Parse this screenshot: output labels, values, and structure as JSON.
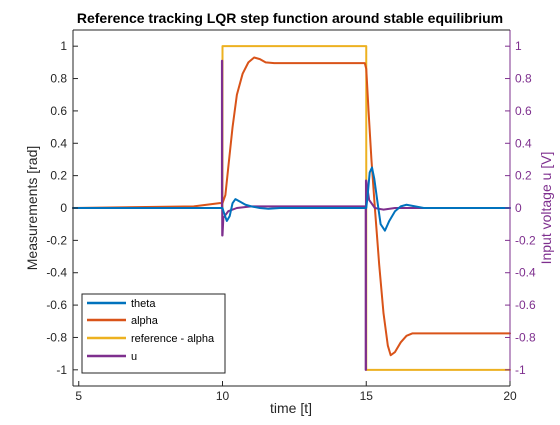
{
  "chart_data": {
    "type": "line",
    "title": "Reference tracking LQR step function around stable equilibrium",
    "xlabel": "time [t]",
    "ylabel": "Measurements [rad]",
    "ylabel_right": "Input voltage u [V]",
    "xlim": [
      4.8,
      20
    ],
    "ylim": [
      -1.1,
      1.1
    ],
    "ylim_right": [
      -1.1,
      1.1
    ],
    "x_ticks": [
      "5",
      "10",
      "15",
      "20"
    ],
    "y_ticks": [
      "1",
      "0.8",
      "0.6",
      "0.4",
      "0.2",
      "0",
      "-0.2",
      "-0.4",
      "-0.6",
      "-0.8",
      "-1"
    ],
    "y_ticks_right": [
      "1",
      "0.8",
      "0.6",
      "0.4",
      "0.2",
      "0",
      "-0.2",
      "-0.4",
      "-0.6",
      "-0.8",
      "-1"
    ],
    "grid": false,
    "legend_position": "bottom-left",
    "colors": {
      "theta": "#0072BD",
      "alpha": "#D95319",
      "reference": "#EDB120",
      "u": "#7E2F8E"
    },
    "series": [
      {
        "name": "theta",
        "x": [
          4.8,
          9.9,
          10.0,
          10.05,
          10.15,
          10.25,
          10.35,
          10.45,
          10.6,
          10.8,
          11.0,
          11.3,
          11.6,
          12.0,
          12.5,
          13.0,
          14.0,
          14.95,
          15.0,
          15.05,
          15.12,
          15.2,
          15.28,
          15.38,
          15.5,
          15.65,
          15.8,
          16.0,
          16.2,
          16.4,
          16.7,
          17.0,
          17.5,
          18.0,
          19.0,
          20.0
        ],
        "y": [
          0.0,
          0.0,
          0.0,
          -0.03,
          -0.08,
          -0.05,
          0.03,
          0.055,
          0.04,
          0.02,
          0.01,
          0.0,
          -0.005,
          0.0,
          0.0,
          0.0,
          0.0,
          0.0,
          0.0,
          0.08,
          0.22,
          0.25,
          0.18,
          0.05,
          -0.1,
          -0.14,
          -0.08,
          -0.02,
          0.01,
          0.02,
          0.01,
          0.0,
          0.0,
          0.0,
          0.0,
          0.0
        ]
      },
      {
        "name": "alpha",
        "x": [
          4.8,
          9.0,
          9.9,
          10.0,
          10.1,
          10.2,
          10.35,
          10.5,
          10.7,
          10.9,
          11.1,
          11.3,
          11.5,
          11.8,
          12.0,
          13.0,
          14.0,
          14.95,
          15.0,
          15.08,
          15.18,
          15.3,
          15.45,
          15.6,
          15.75,
          15.85,
          16.0,
          16.2,
          16.4,
          16.6,
          16.8,
          17.0,
          17.5,
          18.0,
          19.0,
          20.0
        ],
        "y": [
          0.0,
          0.01,
          0.03,
          0.03,
          0.08,
          0.25,
          0.5,
          0.7,
          0.83,
          0.9,
          0.93,
          0.92,
          0.9,
          0.895,
          0.895,
          0.895,
          0.895,
          0.895,
          0.86,
          0.6,
          0.3,
          0.0,
          -0.35,
          -0.65,
          -0.85,
          -0.91,
          -0.89,
          -0.83,
          -0.79,
          -0.775,
          -0.775,
          -0.775,
          -0.775,
          -0.775,
          -0.775,
          -0.775
        ]
      },
      {
        "name": "reference - alpha",
        "x": [
          4.8,
          10.0,
          10.0,
          15.0,
          15.0,
          20.0
        ],
        "y": [
          0.0,
          0.0,
          1.0,
          1.0,
          -1.0,
          -1.0
        ]
      },
      {
        "name": "u",
        "x": [
          4.8,
          9.98,
          9.98,
          9.99,
          9.99,
          10.0,
          10.03,
          10.2,
          10.5,
          11.0,
          12.0,
          14.0,
          14.98,
          14.98,
          14.99,
          14.99,
          15.0,
          15.1,
          15.3,
          15.6,
          16.0,
          17.0,
          18.0,
          20.0
        ],
        "y": [
          0.0,
          0.0,
          0.91,
          0.91,
          -0.17,
          -0.17,
          -0.06,
          -0.02,
          0.0,
          0.01,
          0.01,
          0.01,
          0.01,
          -1.0,
          -1.0,
          0.17,
          0.17,
          0.05,
          0.0,
          -0.01,
          0.0,
          0.0,
          0.0,
          0.0
        ]
      }
    ]
  }
}
